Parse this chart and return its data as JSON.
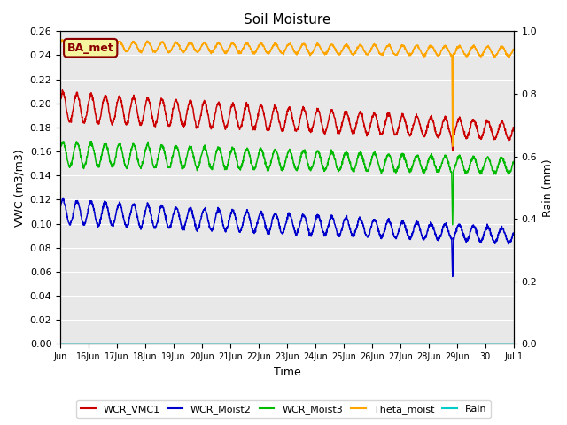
{
  "title": "Soil Moisture",
  "ylabel_left": "VWC (m3/m3)",
  "ylabel_right": "Rain (mm)",
  "xlabel": "Time",
  "ylim_left": [
    0.0,
    0.26
  ],
  "ylim_right": [
    0.0,
    1.0
  ],
  "background_color": "#e8e8e8",
  "annotation_label": "BA_met",
  "annotation_bg": "#f5f5a0",
  "annotation_border": "#8b0000",
  "legend_colors": {
    "WCR_VMC1": "#cc0000",
    "WCR_Moist2": "#0000cc",
    "WCR_Moist3": "#00bb00",
    "Theta_moist": "#ffa500",
    "Rain": "#00cccc"
  }
}
